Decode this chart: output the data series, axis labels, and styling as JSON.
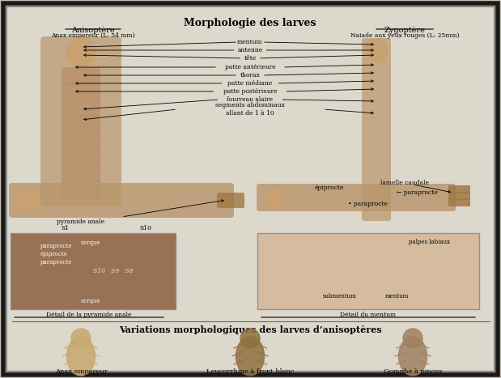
{
  "title": "Morphologie des larves",
  "subtitle_bottom": "Variations morphologiques des larves d’anisoptères",
  "left_title": "Anisoptère",
  "left_subtitle": "Anax empereur (L: 54 mm)",
  "right_title": "Zygoptère",
  "right_subtitle": "Naiade aux yeux rouges (L: 25mm)",
  "labels_center": [
    "mentum",
    "antenne",
    "tête",
    "patte antérieure",
    "thorax",
    "patte médiane",
    "patte postérieure",
    "fourreau alaire",
    "segments abdominaux\nallant de 1 à 10"
  ],
  "label_pyramide": "pyramide anale",
  "label_s1": "S1",
  "label_s10": "S10",
  "label_lamelle": "lamelle caudale",
  "label_epiprocte1": "épiprocte",
  "label_paraprocte1": "← paraprocte",
  "label_paraprocte2": "• paraprocte",
  "label_detail_pyramide": "Détail de la pyramide anale",
  "label_paraprocte_left": "paraprocte",
  "label_epiprocte_left": "épiprocte",
  "label_paraprocte_left2": "paraprocte",
  "label_cerque1": "cerque",
  "label_cerque2": "cerque",
  "label_s10s9s8": "S10   S9   S8",
  "label_palpes": "palpes labiaux",
  "label_submentum": "submentum",
  "label_mentum": "mentum",
  "label_detail_mentum": "Détail du mentum",
  "bottom_labels": [
    "Anax empereur",
    "Leucorrhine à front blanc",
    "Gomphe à pinces"
  ],
  "bg_color": "#d0c8b8",
  "border_color": "#1a1a1a",
  "text_color": "#000000",
  "figure_bg": "#c8bfaf"
}
